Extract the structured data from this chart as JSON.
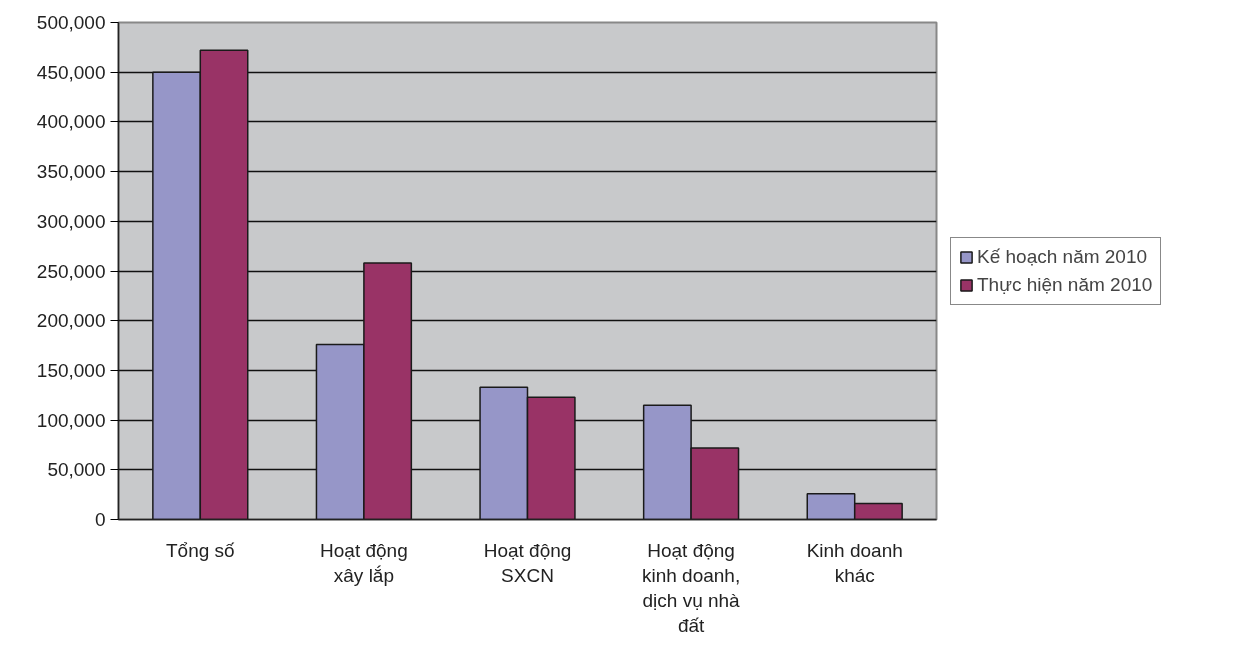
{
  "chart_data": {
    "type": "bar",
    "categories": [
      "Tổng số",
      "Hoạt động xây lắp",
      "Hoạt động SXCN",
      "Hoạt động kinh doanh, dịch vụ nhà đất",
      "Kinh doanh khác"
    ],
    "series": [
      {
        "name": "Kế hoạch năm 2010",
        "color": "#9696c8",
        "values": [
          450000,
          176000,
          133000,
          115000,
          26000
        ]
      },
      {
        "name": "Thực hiện năm 2010",
        "color": "#993366",
        "values": [
          472000,
          258000,
          123000,
          72000,
          16000
        ]
      }
    ],
    "ylim": [
      0,
      500000
    ],
    "yticks": [
      {
        "value": 0,
        "label": "0"
      },
      {
        "value": 50000,
        "label": "50,000"
      },
      {
        "value": 100000,
        "label": "100,000"
      },
      {
        "value": 150000,
        "label": "150,000"
      },
      {
        "value": 200000,
        "label": "200,000"
      },
      {
        "value": 250000,
        "label": "250,000"
      },
      {
        "value": 300000,
        "label": "300,000"
      },
      {
        "value": 350000,
        "label": "350,000"
      },
      {
        "value": 400000,
        "label": "400,000"
      },
      {
        "value": 450000,
        "label": "450,000"
      },
      {
        "value": 500000,
        "label": "500,000"
      }
    ],
    "grid": "y",
    "legend": "right"
  }
}
